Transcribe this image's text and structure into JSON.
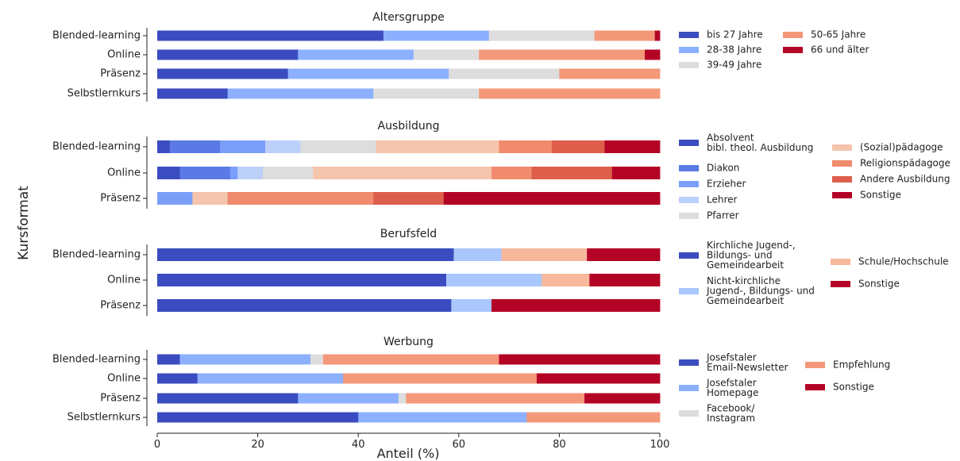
{
  "chart_data": {
    "type": "bar",
    "stacked": true,
    "orientation": "horizontal",
    "xlabel": "Anteil (%)",
    "ylabel": "Kursformat",
    "xlim": [
      0,
      100
    ],
    "xticks": [
      0,
      20,
      40,
      60,
      80,
      100
    ],
    "grid": false,
    "legend_position": "right",
    "panels": [
      {
        "title": "Altersgruppe",
        "categories": [
          "Blended-learning",
          "Online",
          "Präsenz",
          "Selbstlernkurs"
        ],
        "series": [
          {
            "name": "bis 27 Jahre",
            "color": "#3b4cc0",
            "values": [
              45,
              28,
              26,
              14
            ]
          },
          {
            "name": "28-38 Jahre",
            "color": "#8db0fe",
            "values": [
              21,
              23,
              32,
              29
            ]
          },
          {
            "name": "39-49 Jahre",
            "color": "#dddddd",
            "values": [
              21,
              13,
              22,
              21
            ]
          },
          {
            "name": "50-65 Jahre",
            "color": "#f4987a",
            "values": [
              12,
              33,
              20,
              36
            ]
          },
          {
            "name": "66 und älter",
            "color": "#b40426",
            "values": [
              1,
              3,
              0,
              0
            ]
          }
        ],
        "legend_columns": [
          [
            "bis 27 Jahre",
            "28-38 Jahre",
            "39-49 Jahre"
          ],
          [
            "50-65 Jahre",
            "66 und älter"
          ]
        ]
      },
      {
        "title": "Ausbildung",
        "categories": [
          "Blended-learning",
          "Online",
          "Präsenz"
        ],
        "series": [
          {
            "name": "Absolvent bibl. theol. Ausbildung",
            "label_lines": [
              "Absolvent",
              "bibl. theol. Ausbildung"
            ],
            "color": "#3b4cc0",
            "values": [
              2.5,
              4.5,
              0
            ]
          },
          {
            "name": "Diakon",
            "color": "#5b7ae5",
            "values": [
              10,
              10,
              0
            ]
          },
          {
            "name": "Erzieher",
            "color": "#7b9ff9",
            "values": [
              9,
              1.5,
              7
            ]
          },
          {
            "name": "Lehrer",
            "color": "#bcd0fa",
            "values": [
              7,
              5,
              0
            ]
          },
          {
            "name": "Pfarrer",
            "color": "#dddddd",
            "values": [
              15,
              10,
              0
            ]
          },
          {
            "name": "(Sozial)pädagoge",
            "color": "#f5c4ac",
            "values": [
              24.5,
              35.5,
              7
            ]
          },
          {
            "name": "Religionspädagoge",
            "color": "#f08b6e",
            "values": [
              10.5,
              8,
              29
            ]
          },
          {
            "name": "Andere Ausbildung",
            "color": "#dd5f4b",
            "values": [
              10.5,
              16,
              14
            ]
          },
          {
            "name": "Sonstige",
            "color": "#b40426",
            "values": [
              11,
              9.5,
              43
            ]
          }
        ],
        "legend_columns": [
          [
            "Absolvent bibl. theol. Ausbildung",
            "Diakon",
            "Erzieher",
            "Lehrer",
            "Pfarrer"
          ],
          [
            "(Sozial)pädagoge",
            "Religionspädagoge",
            "Andere Ausbildung",
            "Sonstige"
          ]
        ]
      },
      {
        "title": "Berufsfeld",
        "categories": [
          "Blended-learning",
          "Online",
          "Präsenz"
        ],
        "series": [
          {
            "name": "Kirchliche Jugend-, Bildungs- und Gemeindearbeit",
            "label_lines": [
              "Kirchliche Jugend-,",
              "Bildungs- und",
              "Gemeindearbeit"
            ],
            "color": "#3b4cc0",
            "values": [
              59,
              57.5,
              58.5
            ]
          },
          {
            "name": "Nicht-kirchliche Jugend-, Bildungs- und Gemeindearbeit",
            "label_lines": [
              "Nicht-kirchliche",
              "Jugend-, Bildungs- und",
              "Gemeindearbeit"
            ],
            "color": "#aac7fd",
            "values": [
              9.5,
              19,
              8
            ]
          },
          {
            "name": "Schule/Hochschule",
            "color": "#f7b89c",
            "values": [
              17,
              9.5,
              0
            ]
          },
          {
            "name": "Sonstige",
            "color": "#b40426",
            "values": [
              14.5,
              14,
              33.5
            ]
          }
        ],
        "legend_columns": [
          [
            "Kirchliche Jugend-, Bildungs- und Gemeindearbeit",
            "Nicht-kirchliche Jugend-, Bildungs- und Gemeindearbeit"
          ],
          [
            "Schule/Hochschule",
            "Sonstige"
          ]
        ]
      },
      {
        "title": "Werbung",
        "categories": [
          "Blended-learning",
          "Online",
          "Präsenz",
          "Selbstlernkurs"
        ],
        "series": [
          {
            "name": "Josefstaler Email-Newsletter",
            "label_lines": [
              "Josefstaler",
              "Email-Newsletter"
            ],
            "color": "#3b4cc0",
            "values": [
              4.5,
              8,
              28,
              40
            ]
          },
          {
            "name": "Josefstaler Homepage",
            "label_lines": [
              "Josefstaler",
              "Homepage"
            ],
            "color": "#8db0fe",
            "values": [
              26,
              29,
              20,
              33.5
            ]
          },
          {
            "name": "Facebook/ Instagram",
            "label_lines": [
              "Facebook/",
              "Instagram"
            ],
            "color": "#dddddd",
            "values": [
              2.5,
              0,
              1.5,
              0
            ]
          },
          {
            "name": "Empfehlung",
            "color": "#f4987a",
            "values": [
              35,
              38.5,
              35.5,
              26.5
            ]
          },
          {
            "name": "Sonstige",
            "color": "#b40426",
            "values": [
              32,
              24.5,
              15,
              0
            ]
          }
        ],
        "legend_columns": [
          [
            "Josefstaler Email-Newsletter",
            "Josefstaler Homepage",
            "Facebook/ Instagram"
          ],
          [
            "Empfehlung",
            "Sonstige"
          ]
        ]
      }
    ]
  }
}
